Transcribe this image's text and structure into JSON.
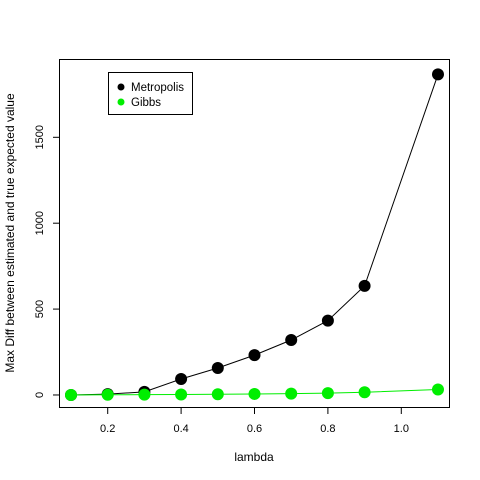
{
  "chart_data": {
    "type": "line",
    "title": "",
    "xlabel": "lambda",
    "ylabel": "Max Diff between estimated and true expected value",
    "xlim": [
      0.07,
      1.13
    ],
    "ylim": [
      -70,
      1950
    ],
    "x_ticks": [
      0.2,
      0.4,
      0.6,
      0.8,
      1.0
    ],
    "x_tick_labels": [
      "0.2",
      "0.4",
      "0.6",
      "0.8",
      "1.0"
    ],
    "y_ticks": [
      0,
      500,
      1000,
      1500
    ],
    "y_tick_labels": [
      "0",
      "500",
      "1000",
      "1500"
    ],
    "grid": false,
    "legend_position": "top-left",
    "x": [
      0.1,
      0.2,
      0.3,
      0.4,
      0.5,
      0.6,
      0.7,
      0.8,
      0.9,
      1.1
    ],
    "series": [
      {
        "name": "Metropolis",
        "color": "#000000",
        "values": [
          0,
          5,
          18,
          93,
          157,
          232,
          320,
          433,
          635,
          1866
        ]
      },
      {
        "name": "Gibbs",
        "color": "#00ee00",
        "values": [
          0,
          1,
          2,
          3,
          4,
          6,
          8,
          11,
          16,
          32
        ]
      }
    ]
  }
}
